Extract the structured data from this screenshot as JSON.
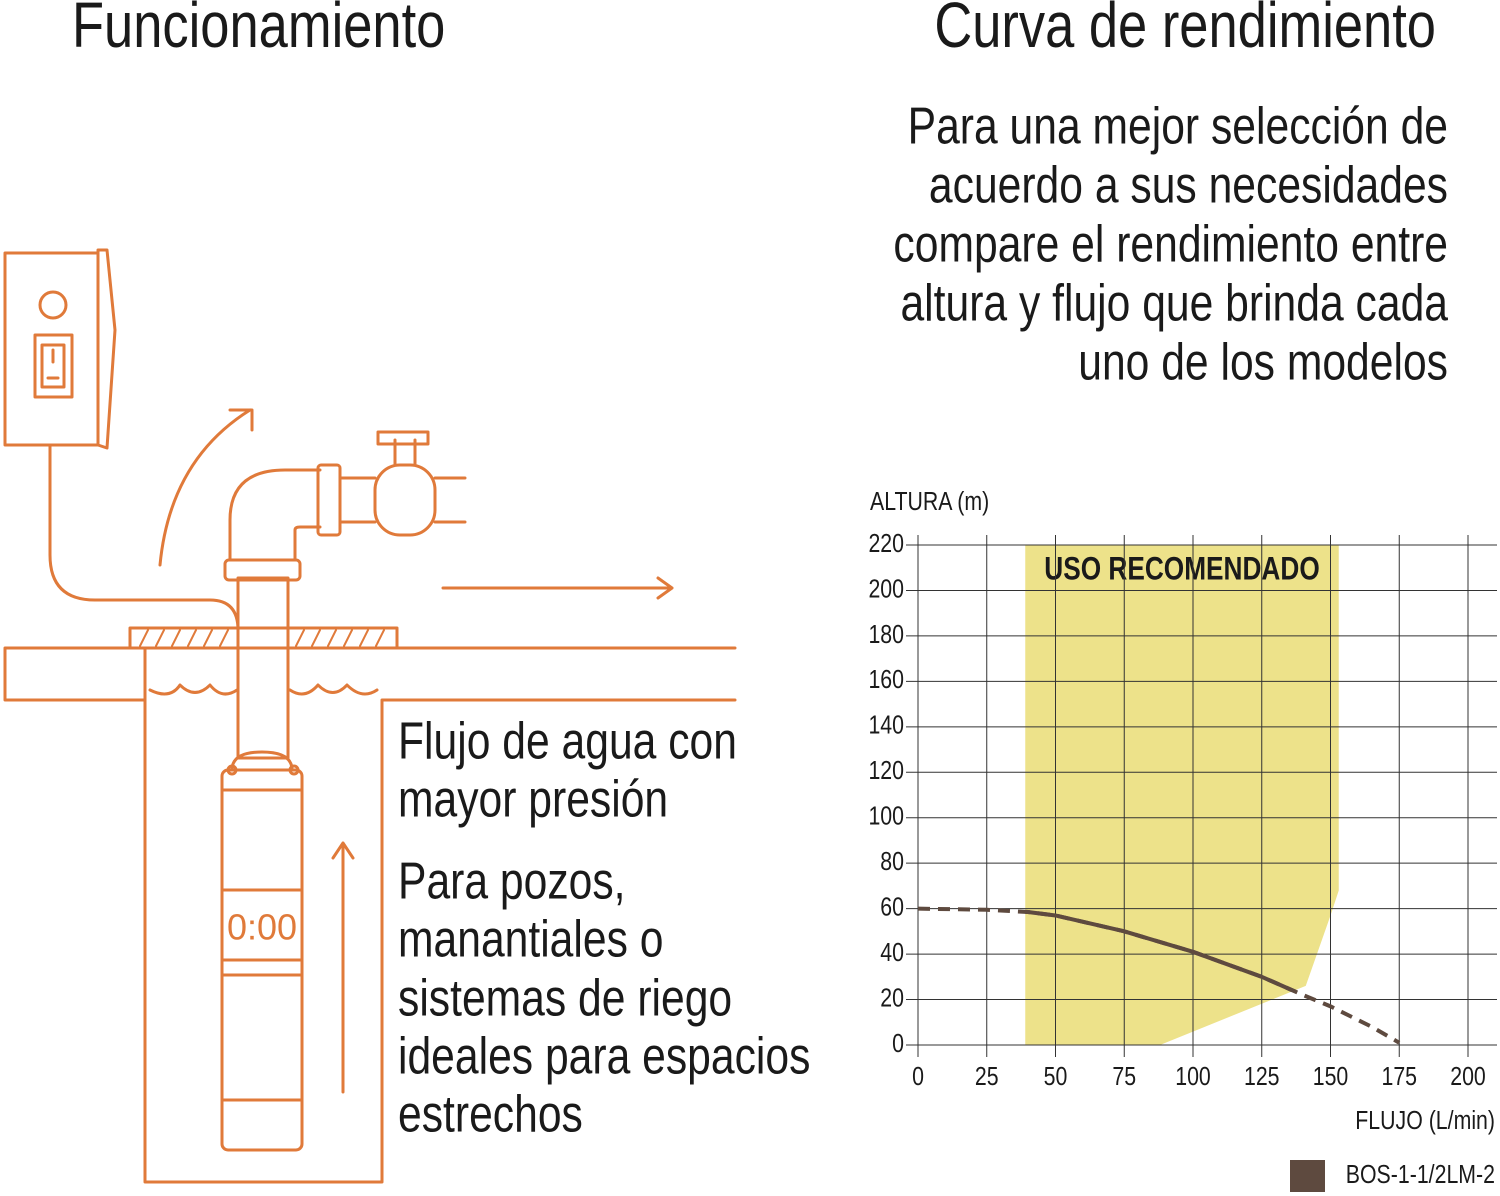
{
  "headings": {
    "left": "Funcionamiento",
    "right": "Curva de rendimiento"
  },
  "intro": [
    "Para una mejor selección de",
    "acuerdo a sus necesidades",
    "compare el rendimiento entre",
    "altura y flujo que brinda cada",
    "uno de los modelos"
  ],
  "diagram": {
    "display": "0:00",
    "captions": [
      "Flujo de agua con",
      "mayor presión",
      "Para pozos,",
      "manantiales o",
      "sistemas de riego",
      "ideales para espacios",
      "estrechos"
    ]
  },
  "chart_data": {
    "type": "line",
    "ylabel": "ALTURA (m)",
    "xlabel": "FLUJO (L/min)",
    "x": [
      0,
      25,
      40,
      50,
      75,
      100,
      125,
      140,
      150,
      165,
      175
    ],
    "series": [
      {
        "name": "BOS-1-1/2LM-2",
        "color": "#5e4a3f",
        "values": [
          60,
          59.5,
          58.5,
          57,
          50,
          41,
          30,
          22,
          17,
          8,
          1
        ]
      }
    ],
    "xlim": [
      0,
      200
    ],
    "xticks": [
      0,
      25,
      50,
      75,
      100,
      125,
      150,
      175,
      200
    ],
    "ylim": [
      0,
      220
    ],
    "yticks": [
      0,
      20,
      40,
      60,
      80,
      100,
      120,
      140,
      160,
      180,
      200,
      220
    ],
    "grid": true,
    "legend": "bottom right",
    "region": {
      "label": "USO RECOMENDADO",
      "color": "#ede28a",
      "x": [
        39,
        153,
        153,
        150,
        141,
        88,
        39
      ],
      "y": [
        220,
        220,
        68,
        57,
        26,
        0,
        0
      ]
    }
  }
}
